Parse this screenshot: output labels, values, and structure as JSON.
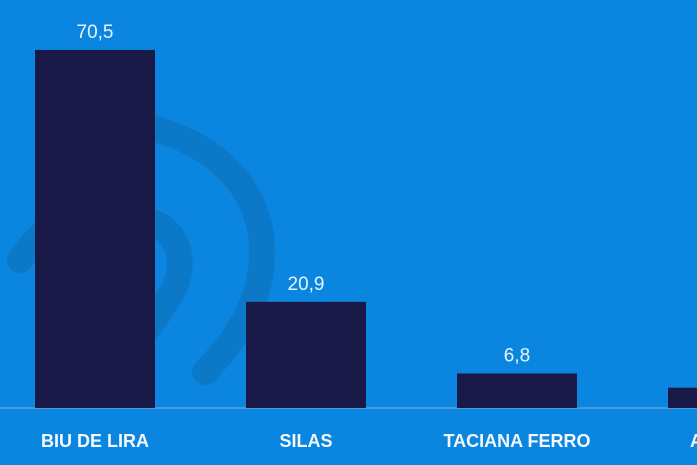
{
  "chart_data": {
    "type": "bar",
    "categories": [
      "BIU DE LIRA",
      "SILAS",
      "TACIANA FERRO",
      "ANGELA"
    ],
    "values": [
      70.5,
      20.9,
      6.8,
      4.0
    ],
    "value_labels": [
      "70,5",
      "20,9",
      "6,8",
      ""
    ],
    "title": "",
    "xlabel": "",
    "ylabel": "",
    "ylim": [
      0,
      76
    ],
    "grid": false,
    "legend": "none",
    "colors": {
      "background": "#0a86e0",
      "bar": "#181946",
      "watermark": "#0c78c8",
      "axis": "#5a9fd4",
      "label_text": "#e9f3fb"
    }
  }
}
